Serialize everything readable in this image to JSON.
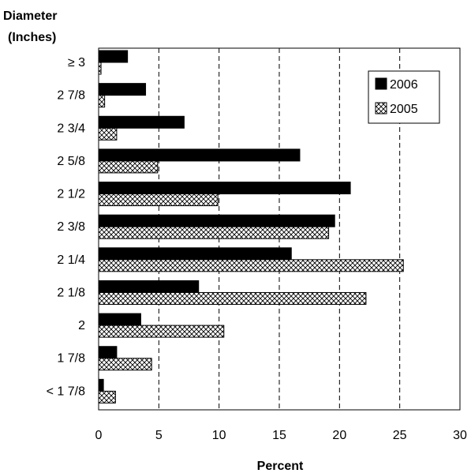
{
  "chart_data": {
    "type": "bar",
    "orientation": "horizontal",
    "ylabel_line1": "Diameter",
    "ylabel_line2": "(Inches)",
    "xlabel": "Percent",
    "xlim": [
      0,
      30
    ],
    "xticks": [
      "0",
      "5",
      "10",
      "15",
      "20",
      "25",
      "30"
    ],
    "grid": "vertical dashed",
    "legend_position": "top-right",
    "categories": [
      "≥  3",
      "2 7/8",
      "2 3/4",
      "2 5/8",
      "2 1/2",
      "2 3/8",
      "2 1/4",
      "2 1/8",
      "2",
      "1 7/8",
      "< 1 7/8"
    ],
    "series": [
      {
        "name": "2006",
        "pattern": "solid",
        "color": "#000000",
        "values": [
          2.4,
          3.9,
          7.1,
          16.7,
          20.9,
          19.6,
          16.0,
          8.3,
          3.5,
          1.5,
          0.4
        ]
      },
      {
        "name": "2005",
        "pattern": "crosshatch",
        "color": "#000000",
        "values": [
          0.2,
          0.5,
          1.5,
          4.9,
          9.9,
          19.1,
          25.3,
          22.2,
          10.4,
          4.4,
          1.4
        ]
      }
    ]
  }
}
